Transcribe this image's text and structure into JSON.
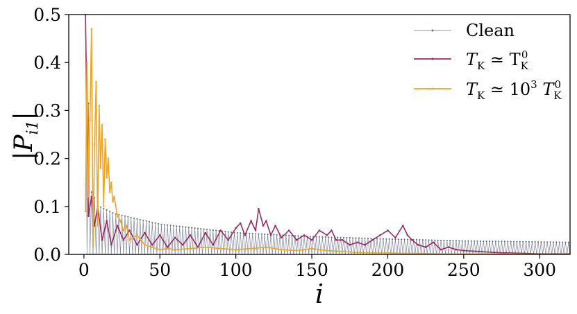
{
  "chart_data": {
    "type": "line",
    "xlabel": "i",
    "ylabel": "|P",
    "ylabel_sub": "i1",
    "ylabel_close": "|",
    "xlim": [
      -10,
      320
    ],
    "ylim": [
      0,
      0.5
    ],
    "xticks": [
      0,
      50,
      100,
      150,
      200,
      250,
      300
    ],
    "yticks": [
      0.0,
      0.1,
      0.2,
      0.3,
      0.4,
      0.5
    ],
    "xtick_labels": [
      "0",
      "50",
      "100",
      "150",
      "200",
      "250",
      "300"
    ],
    "ytick_labels": [
      "0.0",
      "0.1",
      "0.2",
      "0.3",
      "0.4",
      "0.5"
    ],
    "legend": {
      "position": "top-right",
      "entries": [
        {
          "main": "Clean"
        },
        {
          "main": "T",
          "sub": "K",
          "rel": " ≃ T",
          "sub2": "K",
          "sup2": "0"
        },
        {
          "main": "T",
          "sub": "K",
          "rel": " ≃ 10",
          "sup1": "3",
          "mid": " T",
          "sub2": "K",
          "sup2": "0"
        }
      ]
    },
    "series": [
      {
        "color": "#6b7089",
        "envelope": "alternating",
        "x_start": 1,
        "x_end": 320,
        "upper_at": [
          [
            1,
            0.5
          ],
          [
            5,
            0.13
          ],
          [
            10,
            0.1
          ],
          [
            20,
            0.085
          ],
          [
            50,
            0.063
          ],
          [
            100,
            0.045
          ],
          [
            150,
            0.037
          ],
          [
            200,
            0.032
          ],
          [
            250,
            0.028
          ],
          [
            320,
            0.025
          ]
        ],
        "lower": 0.0
      },
      {
        "color": "#9b2a63",
        "points": [
          [
            1,
            0.5
          ],
          [
            3,
            0.08
          ],
          [
            5,
            0.12
          ],
          [
            7,
            0.06
          ],
          [
            9,
            0.1
          ],
          [
            12,
            0.03
          ],
          [
            15,
            0.07
          ],
          [
            18,
            0.02
          ],
          [
            22,
            0.06
          ],
          [
            26,
            0.03
          ],
          [
            30,
            0.05
          ],
          [
            35,
            0.02
          ],
          [
            40,
            0.045
          ],
          [
            45,
            0.02
          ],
          [
            50,
            0.04
          ],
          [
            55,
            0.015
          ],
          [
            60,
            0.035
          ],
          [
            65,
            0.02
          ],
          [
            70,
            0.04
          ],
          [
            75,
            0.015
          ],
          [
            80,
            0.045
          ],
          [
            85,
            0.02
          ],
          [
            90,
            0.05
          ],
          [
            95,
            0.03
          ],
          [
            100,
            0.055
          ],
          [
            103,
            0.065
          ],
          [
            106,
            0.04
          ],
          [
            110,
            0.07
          ],
          [
            113,
            0.05
          ],
          [
            115,
            0.095
          ],
          [
            118,
            0.06
          ],
          [
            120,
            0.07
          ],
          [
            123,
            0.04
          ],
          [
            126,
            0.06
          ],
          [
            130,
            0.035
          ],
          [
            135,
            0.05
          ],
          [
            140,
            0.03
          ],
          [
            145,
            0.04
          ],
          [
            150,
            0.03
          ],
          [
            155,
            0.05
          ],
          [
            160,
            0.04
          ],
          [
            163,
            0.05
          ],
          [
            166,
            0.03
          ],
          [
            170,
            0.03
          ],
          [
            175,
            0.02
          ],
          [
            180,
            0.025
          ],
          [
            185,
            0.02
          ],
          [
            190,
            0.03
          ],
          [
            195,
            0.04
          ],
          [
            200,
            0.05
          ],
          [
            205,
            0.035
          ],
          [
            210,
            0.06
          ],
          [
            213,
            0.04
          ],
          [
            216,
            0.03
          ],
          [
            220,
            0.02
          ],
          [
            225,
            0.015
          ],
          [
            230,
            0.025
          ],
          [
            235,
            0.01
          ],
          [
            240,
            0.015
          ],
          [
            245,
            0.01
          ],
          [
            250,
            0.008
          ],
          [
            260,
            0.006
          ],
          [
            270,
            0.004
          ],
          [
            280,
            0.003
          ],
          [
            290,
            0.002
          ],
          [
            300,
            0.001
          ],
          [
            310,
            0.001
          ],
          [
            320,
            0.001
          ]
        ]
      },
      {
        "color": "#f2a41e",
        "points": [
          [
            1,
            0.09
          ],
          [
            2,
            0.4
          ],
          [
            3,
            0.12
          ],
          [
            4,
            0.28
          ],
          [
            5,
            0.47
          ],
          [
            6,
            0.02
          ],
          [
            7,
            0.23
          ],
          [
            8,
            0.36
          ],
          [
            9,
            0.06
          ],
          [
            10,
            0.31
          ],
          [
            11,
            0.18
          ],
          [
            12,
            0.27
          ],
          [
            13,
            0.1
          ],
          [
            14,
            0.24
          ],
          [
            15,
            0.16
          ],
          [
            16,
            0.2
          ],
          [
            17,
            0.13
          ],
          [
            18,
            0.15
          ],
          [
            19,
            0.11
          ],
          [
            20,
            0.12
          ],
          [
            22,
            0.08
          ],
          [
            24,
            0.07
          ],
          [
            26,
            0.05
          ],
          [
            28,
            0.06
          ],
          [
            30,
            0.03
          ],
          [
            35,
            0.04
          ],
          [
            40,
            0.02
          ],
          [
            45,
            0.015
          ],
          [
            50,
            0.01
          ],
          [
            55,
            0.012
          ],
          [
            60,
            0.01
          ],
          [
            70,
            0.012
          ],
          [
            80,
            0.015
          ],
          [
            90,
            0.012
          ],
          [
            100,
            0.01
          ],
          [
            110,
            0.012
          ],
          [
            120,
            0.015
          ],
          [
            130,
            0.01
          ],
          [
            140,
            0.008
          ],
          [
            150,
            0.012
          ],
          [
            160,
            0.008
          ],
          [
            170,
            0.006
          ],
          [
            180,
            0.004
          ],
          [
            190,
            0.003
          ],
          [
            200,
            0.003
          ],
          [
            210,
            0.002
          ],
          [
            220,
            0.002
          ],
          [
            240,
            0.001
          ],
          [
            260,
            0.001
          ],
          [
            280,
            0.001
          ],
          [
            300,
            0.0
          ],
          [
            320,
            0.0
          ]
        ]
      }
    ]
  }
}
